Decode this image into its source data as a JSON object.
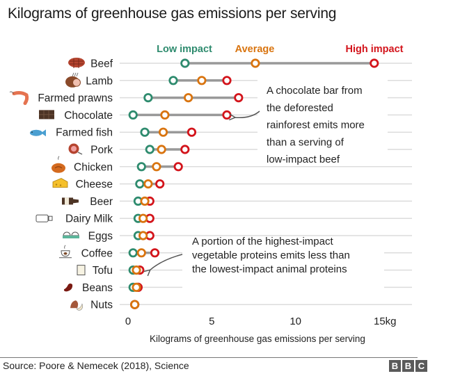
{
  "chart_data": {
    "type": "dumbbell",
    "title": "Kilograms of greenhouse gas emissions per serving",
    "xlabel": "Kilograms of greenhouse gas emissions per serving",
    "xlim": [
      0,
      15
    ],
    "xticks": [
      {
        "value": 0,
        "label": "0"
      },
      {
        "value": 5,
        "label": "5"
      },
      {
        "value": 10,
        "label": "10"
      },
      {
        "value": 15,
        "label": "15kg"
      }
    ],
    "legend": {
      "placement": "top",
      "items": [
        {
          "name": "Low impact",
          "color": "#2e8b6e"
        },
        {
          "name": "Average",
          "color": "#d9740f"
        },
        {
          "name": "High impact",
          "color": "#d3141b"
        }
      ]
    },
    "categories": [
      {
        "name": "Beef",
        "icon": "beef-icon",
        "low": 3.4,
        "avg": 7.6,
        "high": 14.7
      },
      {
        "name": "Lamb",
        "icon": "lamb-icon",
        "low": 2.7,
        "avg": 4.4,
        "high": 5.9
      },
      {
        "name": "Farmed prawns",
        "icon": "prawn-icon",
        "low": 1.2,
        "avg": 3.6,
        "high": 6.6
      },
      {
        "name": "Chocolate",
        "icon": "chocolate-icon",
        "low": 0.3,
        "avg": 2.2,
        "high": 5.9
      },
      {
        "name": "Farmed fish",
        "icon": "fish-icon",
        "low": 1.0,
        "avg": 2.1,
        "high": 3.8
      },
      {
        "name": "Pork",
        "icon": "pork-icon",
        "low": 1.3,
        "avg": 2.0,
        "high": 3.4
      },
      {
        "name": "Chicken",
        "icon": "chicken-icon",
        "low": 0.8,
        "avg": 1.7,
        "high": 3.0
      },
      {
        "name": "Cheese",
        "icon": "cheese-icon",
        "low": 0.7,
        "avg": 1.2,
        "high": 1.9
      },
      {
        "name": "Beer",
        "icon": "beer-icon",
        "low": 0.6,
        "avg": 1.0,
        "high": 1.3
      },
      {
        "name": "Dairy Milk",
        "icon": "milk-icon",
        "low": 0.6,
        "avg": 0.9,
        "high": 1.3
      },
      {
        "name": "Eggs",
        "icon": "eggs-icon",
        "low": 0.6,
        "avg": 0.9,
        "high": 1.3
      },
      {
        "name": "Coffee",
        "icon": "coffee-icon",
        "low": 0.3,
        "avg": 0.8,
        "high": 1.6
      },
      {
        "name": "Tofu",
        "icon": "tofu-icon",
        "low": 0.3,
        "avg": 0.5,
        "high": 0.7
      },
      {
        "name": "Beans",
        "icon": "beans-icon",
        "low": 0.3,
        "avg": 0.5,
        "high": 0.6
      },
      {
        "name": "Nuts",
        "icon": "nuts-icon",
        "low": 0.4,
        "avg": 0.4,
        "high": 0.4
      }
    ],
    "annotations": [
      {
        "target": "Chocolate",
        "lines": [
          "A chocolate bar from",
          "the deforested",
          "rainforest emits more",
          "than a serving of",
          "low-impact beef"
        ]
      },
      {
        "target": "Tofu",
        "lines": [
          "A portion of the highest-impact",
          "vegetable proteins emits less than",
          "the lowest-impact animal proteins"
        ]
      }
    ]
  },
  "footer": {
    "source": "Source: Poore & Nemecek (2018), Science",
    "logo": [
      "B",
      "B",
      "C"
    ]
  }
}
